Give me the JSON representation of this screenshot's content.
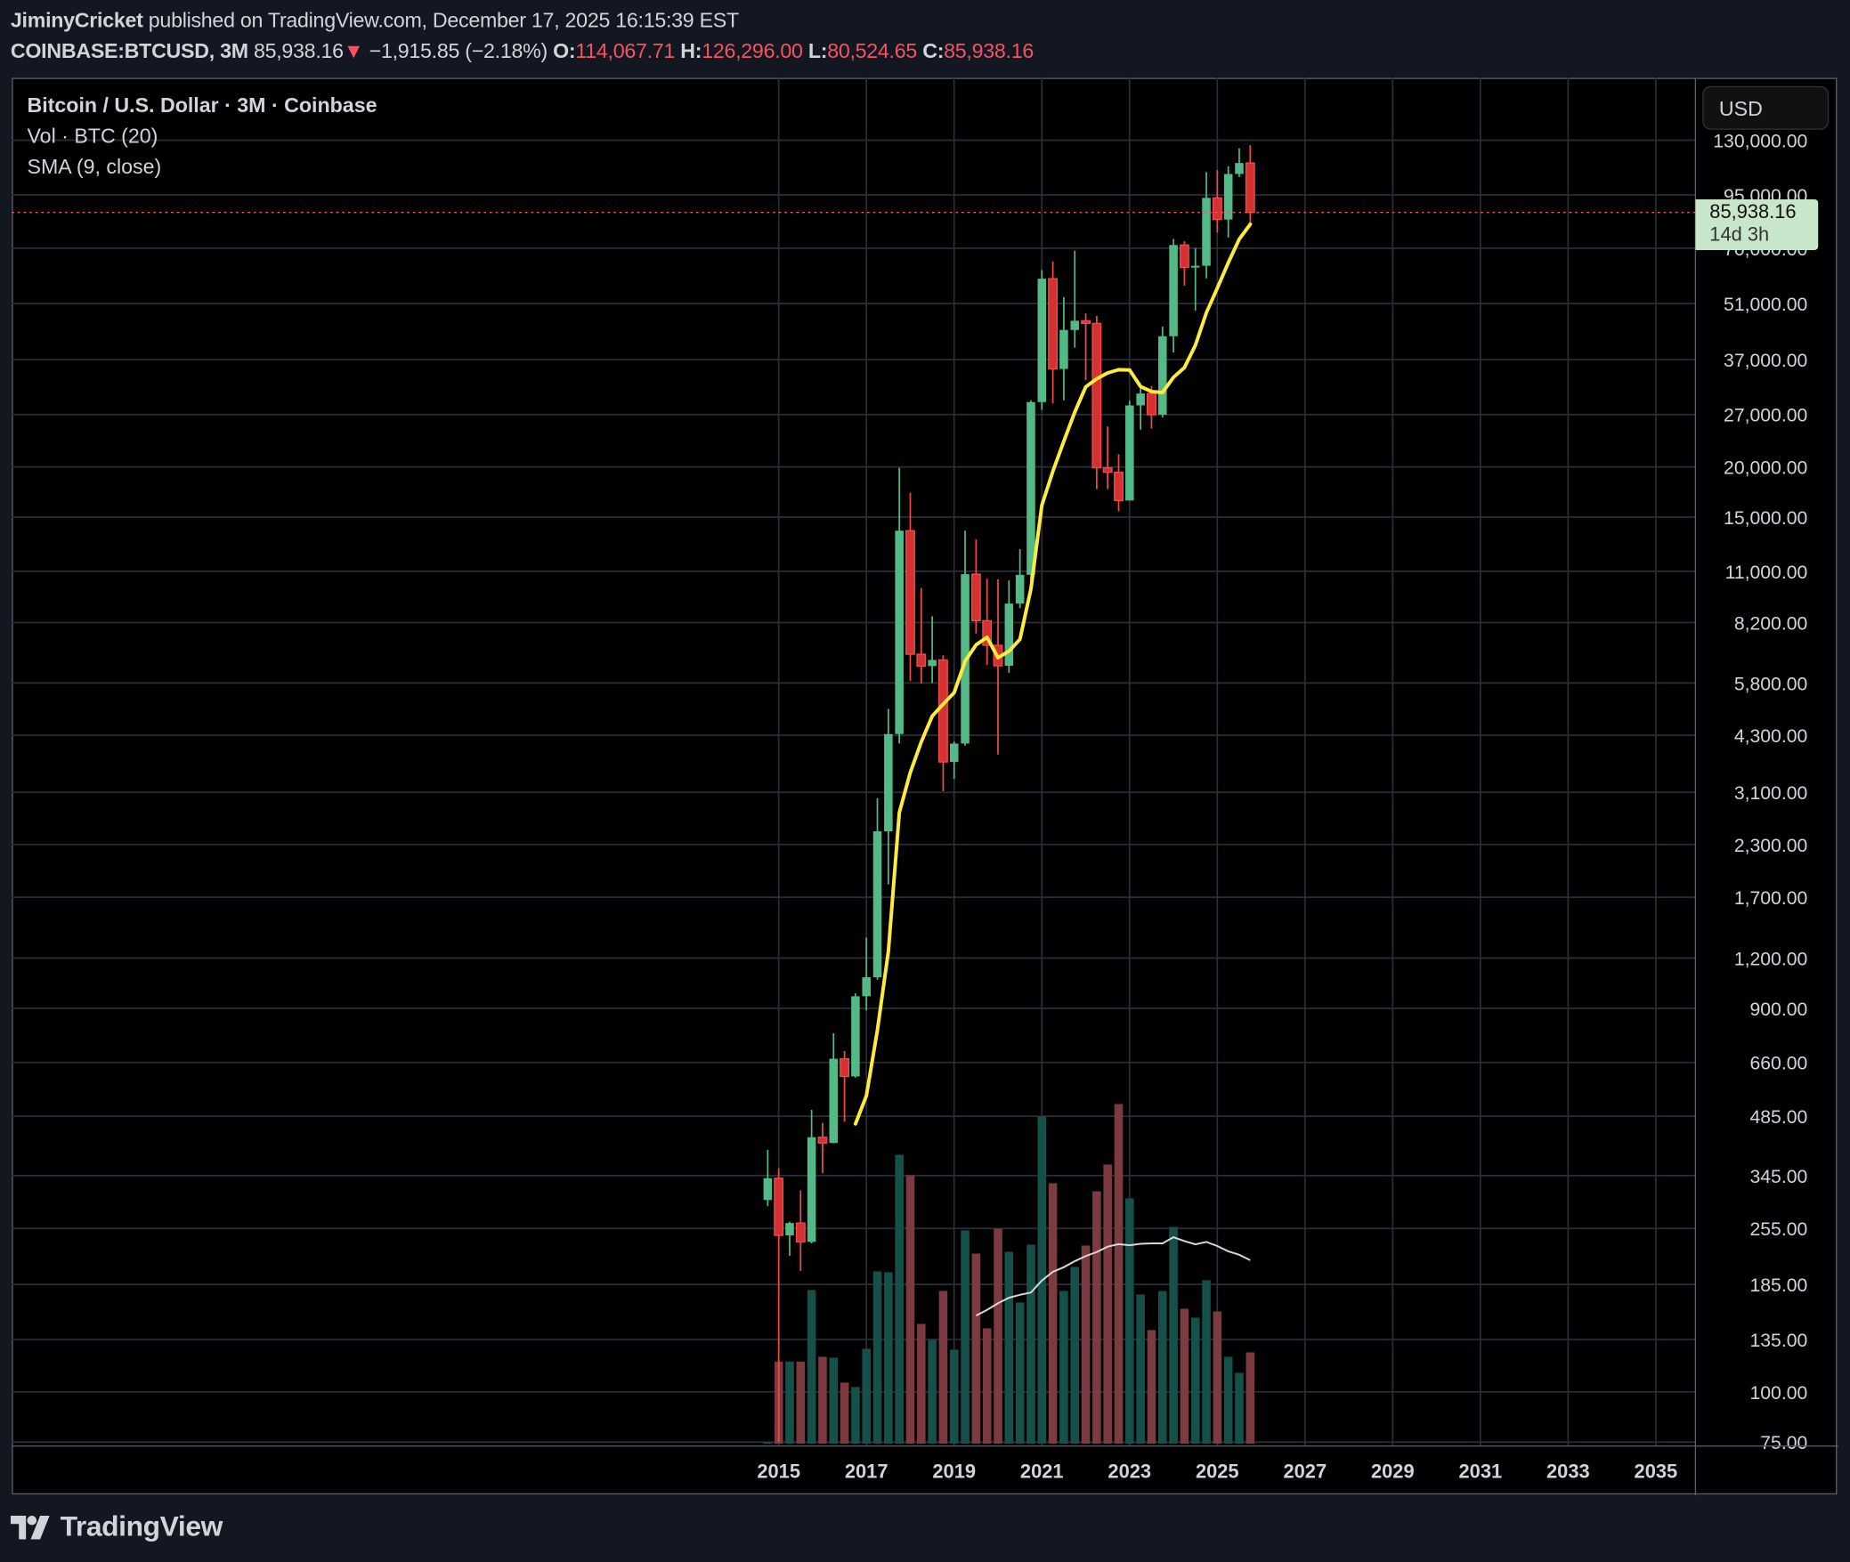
{
  "header": {
    "author": "JiminyCricket",
    "published": "published on TradingView.com, December 17, 2025 16:15:39 EST",
    "symbol": "COINBASE:BTCUSD, 3M",
    "last": "85,938.16",
    "change_arrow": "▼",
    "change": "−1,915.85 (−2.18%)",
    "o_label": "O:",
    "o": "114,067.71",
    "h_label": "H:",
    "h": "126,296.00",
    "l_label": "L:",
    "l": "80,524.65",
    "c_label": "C:",
    "c": "85,938.16"
  },
  "legend": {
    "title": "Bitcoin / U.S. Dollar · 3M · Coinbase",
    "volume": "Vol · BTC (20)",
    "sma": "SMA (9, close)"
  },
  "currency_button": "USD",
  "price_tag": {
    "price": "85,938.16",
    "countdown": "14d 3h"
  },
  "brand": "TradingView",
  "colors": {
    "up": "#53b987",
    "down": "#d43232",
    "down_border": "#f04b4b",
    "vol_up": "#15514a",
    "vol_down": "#7c3b40",
    "sma": "#ffeb3b",
    "vol_ma": "#d8d8d8",
    "last_line": "#f7525f",
    "grid": "#2a2e39",
    "background": "#000000"
  },
  "chart_data": {
    "type": "candlestick",
    "scale": "log",
    "grid": true,
    "price_ticks": [
      130000,
      95000,
      70000,
      51000,
      37000,
      27000,
      20000,
      15000,
      11000,
      8200,
      5800,
      4300,
      3100,
      2300,
      1700,
      1200,
      900,
      660,
      485,
      345,
      255,
      185,
      135,
      100,
      75
    ],
    "price_tick_labels": [
      "130,000.00",
      "95,000.00",
      "70,000.00",
      "51,000.00",
      "37,000.00",
      "27,000.00",
      "20,000.00",
      "15,000.00",
      "11,000.00",
      "8,200.00",
      "5,800.00",
      "4,300.00",
      "3,100.00",
      "2,300.00",
      "1,700.00",
      "1,200.00",
      "900.00",
      "660.00",
      "485.00",
      "345.00",
      "255.00",
      "185.00",
      "135.00",
      "100.00",
      "75.00"
    ],
    "time_ticks": [
      "2015",
      "2017",
      "2019",
      "2021",
      "2023",
      "2025",
      "2027",
      "2029",
      "2031",
      "2033",
      "2035"
    ],
    "last_price": 85938.16,
    "sma_period": 9,
    "volume_ma_period": 20,
    "candles": {
      "period": [
        "2014-Q4",
        "2015-Q1",
        "2015-Q2",
        "2015-Q3",
        "2015-Q4",
        "2016-Q1",
        "2016-Q2",
        "2016-Q3",
        "2016-Q4",
        "2017-Q1",
        "2017-Q2",
        "2017-Q3",
        "2017-Q4",
        "2018-Q1",
        "2018-Q2",
        "2018-Q3",
        "2018-Q4",
        "2019-Q1",
        "2019-Q2",
        "2019-Q3",
        "2019-Q4",
        "2020-Q1",
        "2020-Q2",
        "2020-Q3",
        "2020-Q4",
        "2021-Q1",
        "2021-Q2",
        "2021-Q3",
        "2021-Q4",
        "2022-Q1",
        "2022-Q2",
        "2022-Q3",
        "2022-Q4",
        "2023-Q1",
        "2023-Q2",
        "2023-Q3",
        "2023-Q4",
        "2024-Q1",
        "2024-Q2",
        "2024-Q3",
        "2024-Q4",
        "2025-Q1",
        "2025-Q2",
        "2025-Q3",
        "2025-Q4"
      ],
      "open": [
        300,
        340,
        245,
        263,
        236,
        430,
        416,
        674,
        609,
        964,
        1075,
        2480,
        4330,
        13880,
        6840,
        6390,
        6620,
        3690,
        4100,
        10820,
        8290,
        7200,
        6400,
        9140,
        10780,
        28990,
        58790,
        35050,
        43820,
        46200,
        45500,
        19900,
        19400,
        16500,
        28450,
        30450,
        26960,
        42280,
        71300,
        62700,
        63300,
        93400,
        82500,
        107100,
        114067.71
      ],
      "high": [
        400,
        360,
        265,
        317,
        503,
        467,
        780,
        704,
        980,
        1350,
        3000,
        5000,
        19891,
        17250,
        9990,
        8500,
        6800,
        4150,
        13880,
        13200,
        10540,
        10500,
        10430,
        12480,
        29300,
        61790,
        64900,
        52920,
        69000,
        48200,
        47500,
        25200,
        21500,
        29200,
        31400,
        31800,
        44700,
        73800,
        72800,
        70000,
        108300,
        109500,
        111900,
        124000,
        126296
      ],
      "low": [
        290,
        75,
        218,
        200,
        234,
        350,
        415,
        470,
        605,
        890,
        1060,
        1830,
        4100,
        5870,
        5780,
        5800,
        3120,
        3350,
        4050,
        7700,
        6430,
        3850,
        6150,
        8900,
        10370,
        27730,
        28800,
        29280,
        39600,
        32900,
        17600,
        17600,
        15500,
        16500,
        24750,
        24900,
        26550,
        38500,
        56500,
        49000,
        58900,
        76600,
        74400,
        105300,
        80524.65
      ],
      "close": [
        340,
        245,
        263,
        236,
        430,
        416,
        674,
        609,
        964,
        1075,
        2480,
        4330,
        13880,
        6840,
        6390,
        6620,
        3690,
        4100,
        10820,
        8290,
        7200,
        6400,
        9140,
        10780,
        28990,
        58790,
        35050,
        43820,
        46200,
        45500,
        19900,
        19400,
        16500,
        28450,
        30450,
        26960,
        42280,
        71300,
        62700,
        63300,
        93400,
        82500,
        107100,
        114050,
        85938.16
      ]
    },
    "volume_relative": [
      5,
      277,
      277,
      277,
      518,
      293,
      290,
      206,
      191,
      320,
      581,
      578,
      974,
      905,
      404,
      350,
      515,
      317,
      719,
      641,
      389,
      725,
      647,
      476,
      671,
      1103,
      878,
      515,
      596,
      668,
      851,
      941,
      1145,
      827,
      503,
      383,
      515,
      731,
      455,
      425,
      551,
      446,
      293,
      239,
      308
    ]
  }
}
